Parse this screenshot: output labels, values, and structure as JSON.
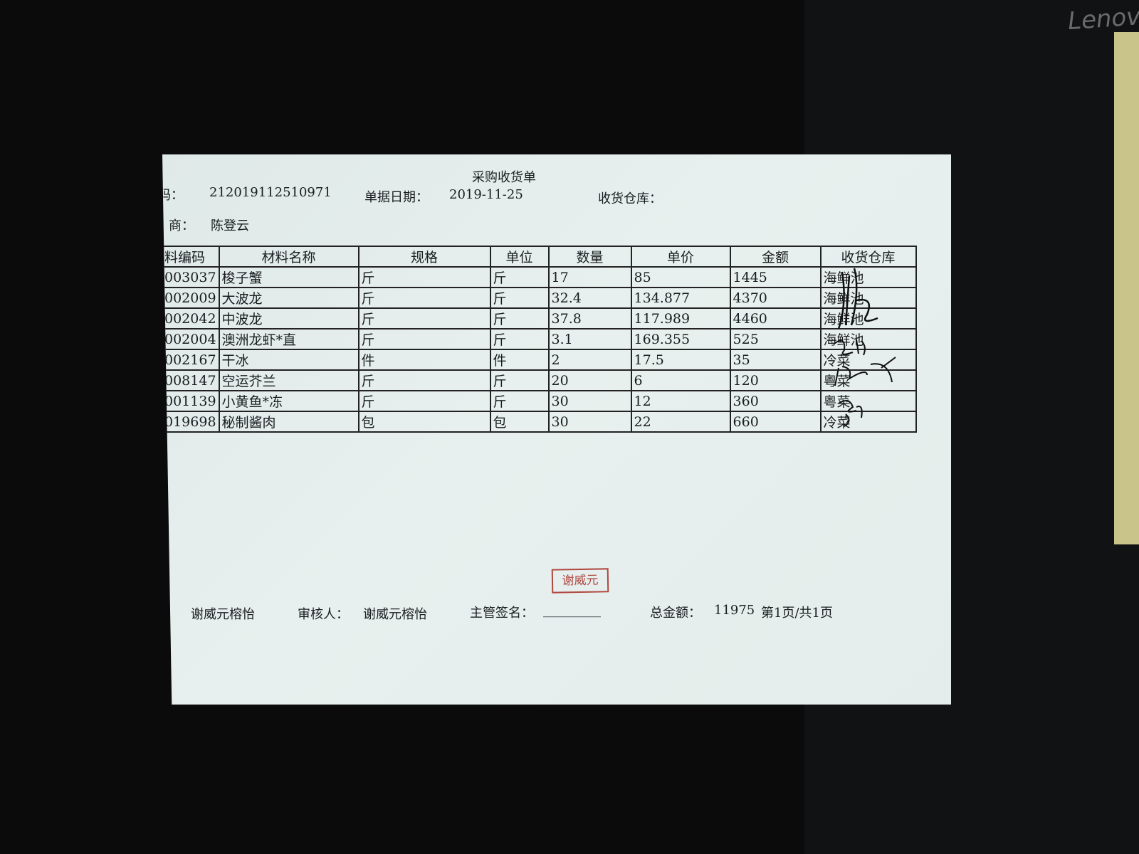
{
  "document": {
    "title": "采购收货单",
    "doc_code_label": "码：",
    "doc_code": "212019112510971",
    "date_label": "单据日期：",
    "date": "2019-11-25",
    "warehouse_label": "收货仓库：",
    "supplier_label": "商：",
    "supplier": "陈登云"
  },
  "table": {
    "headers": [
      "料编码",
      "材料名称",
      "规格",
      "单位",
      "数量",
      "单价",
      "金额",
      "收货仓库"
    ],
    "rows": [
      [
        "003037",
        "梭子蟹",
        "斤",
        "斤",
        "17",
        "85",
        "1445",
        "海鲜池"
      ],
      [
        "002009",
        "大波龙",
        "斤",
        "斤",
        "32.4",
        "134.877",
        "4370",
        "海鲜池"
      ],
      [
        "002042",
        "中波龙",
        "斤",
        "斤",
        "37.8",
        "117.989",
        "4460",
        "海鲜池"
      ],
      [
        "002004",
        "澳洲龙虾*直",
        "斤",
        "斤",
        "3.1",
        "169.355",
        "525",
        "海鲜池"
      ],
      [
        "002167",
        "干冰",
        "件",
        "件",
        "2",
        "17.5",
        "35",
        "冷菜"
      ],
      [
        "008147",
        "空运芥兰",
        "斤",
        "斤",
        "20",
        "6",
        "120",
        "粤菜"
      ],
      [
        "001139",
        "小黄鱼*冻",
        "斤",
        "斤",
        "30",
        "12",
        "360",
        "粤菜"
      ],
      [
        "019698",
        "秘制酱肉",
        "包",
        "包",
        "30",
        "22",
        "660",
        "冷菜"
      ]
    ]
  },
  "stamp": "谢威元",
  "footer": {
    "maker_label": "：",
    "maker": "谢威元榕怡",
    "reviewer_label": "审核人：",
    "reviewer": "谢威元榕怡",
    "manager_label": "主管签名：",
    "manager_blank": "_________",
    "total_label": "总金额：",
    "total": "11975",
    "page": "第1页/共1页"
  },
  "background_brand": "Lenovo",
  "colors": {
    "paper": "#e4edeb",
    "stamp": "#b0463e",
    "background": "#0b0b0c"
  }
}
